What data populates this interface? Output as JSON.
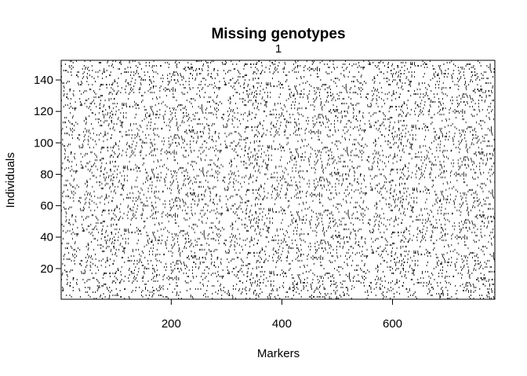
{
  "chart_data": {
    "type": "heatmap",
    "title": "Missing genotypes",
    "subtitle": "1",
    "xlabel": "Markers",
    "ylabel": "Individuals",
    "xlim": [
      1,
      785
    ],
    "ylim": [
      0.5,
      152.5
    ],
    "x_ticks": [
      200,
      400,
      600
    ],
    "y_ticks": [
      20,
      40,
      60,
      80,
      100,
      120,
      140
    ],
    "n_markers": 785,
    "n_individuals": 152,
    "missing_fraction": 0.055,
    "colors": {
      "missing": "#000000",
      "present": "#ffffff",
      "axis": "#000000"
    }
  }
}
